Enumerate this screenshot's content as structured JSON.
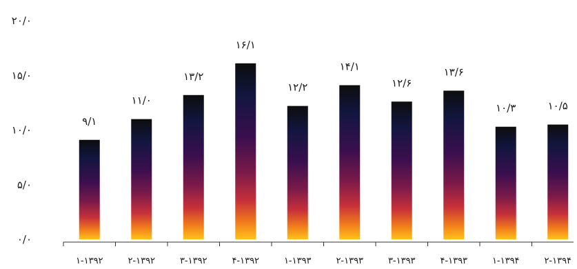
{
  "chart_data": {
    "type": "bar",
    "title": "",
    "xlabel": "",
    "ylabel": "",
    "ylim": [
      0,
      20
    ],
    "y_ticks": [
      0,
      5,
      10,
      15,
      20
    ],
    "y_tick_labels": [
      "۰/۰",
      "۵/۰",
      "۱۰/۰",
      "۱۵/۰",
      "۲۰/۰"
    ],
    "categories": [
      "۱-۱۳۹۲",
      "۲-۱۳۹۲",
      "۳-۱۳۹۲",
      "۴-۱۳۹۲",
      "۱-۱۳۹۳",
      "۲-۱۳۹۳",
      "۳-۱۳۹۳",
      "۴-۱۳۹۳",
      "۱-۱۳۹۴",
      "۲-۱۳۹۴"
    ],
    "values": [
      9.1,
      11.0,
      13.2,
      16.1,
      12.2,
      14.1,
      12.6,
      13.6,
      10.3,
      10.5
    ],
    "value_labels": [
      "۹/۱",
      "۱۱/۰",
      "۱۳/۲",
      "۱۶/۱",
      "۱۲/۲",
      "۱۴/۱",
      "۱۲/۶",
      "۱۳/۶",
      "۱۰/۳",
      "۱۰/۵"
    ],
    "grid": false,
    "legend": "none",
    "bar_gradient": [
      "#0d0d0d",
      "#12163f",
      "#3a0f4e",
      "#7a1a4a",
      "#c7303a",
      "#f07a1c",
      "#ffc21a"
    ]
  }
}
